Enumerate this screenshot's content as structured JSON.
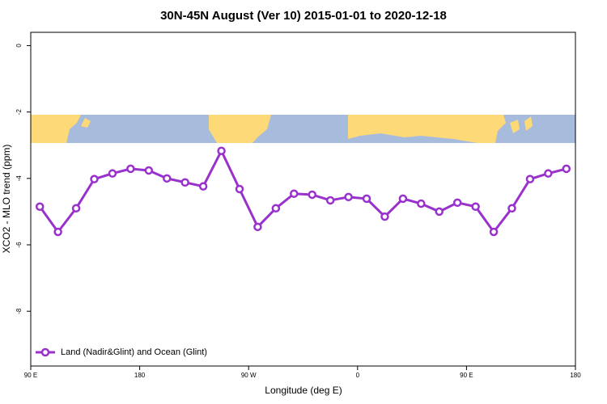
{
  "chart_data": {
    "type": "line",
    "title": "30N-45N August (Ver 10)   2015-01-01 to 2020-12-18",
    "xlabel": "Longitude (deg E)",
    "ylabel": "XCO2 - MLO trend (ppm)",
    "x": [
      97.5,
      112.5,
      127.5,
      142.5,
      157.5,
      172.5,
      187.5,
      202.5,
      217.5,
      232.5,
      247.5,
      262.5,
      277.5,
      292.5,
      307.5,
      322.5,
      337.5,
      352.5,
      367.5,
      382.5,
      397.5,
      412.5,
      427.5,
      442.5,
      457.5,
      472.5,
      487.5,
      502.5,
      517.5,
      532.5
    ],
    "series": [
      {
        "name": "Land (Nadir&Glint) and Ocean (Glint)",
        "color": "#9932cc",
        "values": [
          -4.85,
          -5.61,
          -4.9,
          -4.02,
          -3.85,
          -3.71,
          -3.76,
          -4.0,
          -4.12,
          -4.24,
          -3.17,
          -4.32,
          -5.46,
          -4.9,
          -4.46,
          -4.49,
          -4.66,
          -4.56,
          -4.61,
          -5.15,
          -4.61,
          -4.76,
          -5.0,
          -4.73,
          -4.85,
          -5.61,
          -4.9,
          -4.02,
          -3.85,
          -3.71
        ]
      }
    ],
    "xlim": [
      90,
      540
    ],
    "xticks": [
      {
        "value": 90,
        "label": "90 E"
      },
      180,
      {
        "value": 270,
        "label": "90 W"
      },
      {
        "value": 360,
        "label": "0"
      },
      {
        "value": 450,
        "label": "90 E"
      },
      {
        "value": 540,
        "label": "180"
      }
    ],
    "ylim": [
      -9.65,
      0.4
    ],
    "yticks": [
      0,
      -2,
      -4,
      -6,
      -8
    ],
    "legend": "bottom-left"
  }
}
